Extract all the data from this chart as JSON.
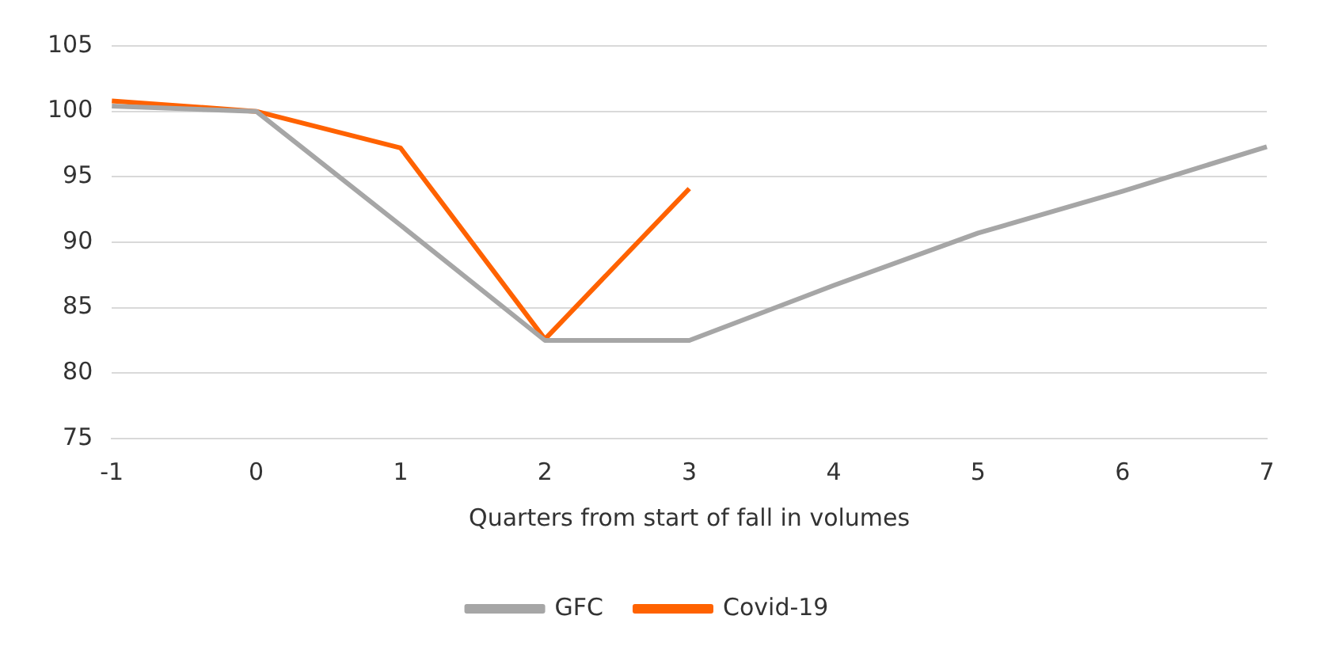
{
  "chart_data": {
    "type": "line",
    "xlabel": "Quarters from start of fall in volumes",
    "categories": [
      "-1",
      "0",
      "1",
      "2",
      "3",
      "4",
      "5",
      "6",
      "7"
    ],
    "series": [
      {
        "name": "GFC",
        "color": "#a6a6a6",
        "values": [
          100.4,
          100,
          91.3,
          82.5,
          82.5,
          86.7,
          90.7,
          93.9,
          97.3
        ]
      },
      {
        "name": "Covid-19",
        "color": "#ff6200",
        "values": [
          100.8,
          100,
          97.2,
          82.6,
          94.1,
          null,
          null,
          null,
          null
        ]
      }
    ],
    "ylim": [
      75,
      105
    ],
    "yticks": [
      75,
      80,
      85,
      90,
      95,
      100,
      105
    ],
    "grid": "y",
    "legend": "bottom",
    "marker": "none",
    "line_style": "solid"
  }
}
